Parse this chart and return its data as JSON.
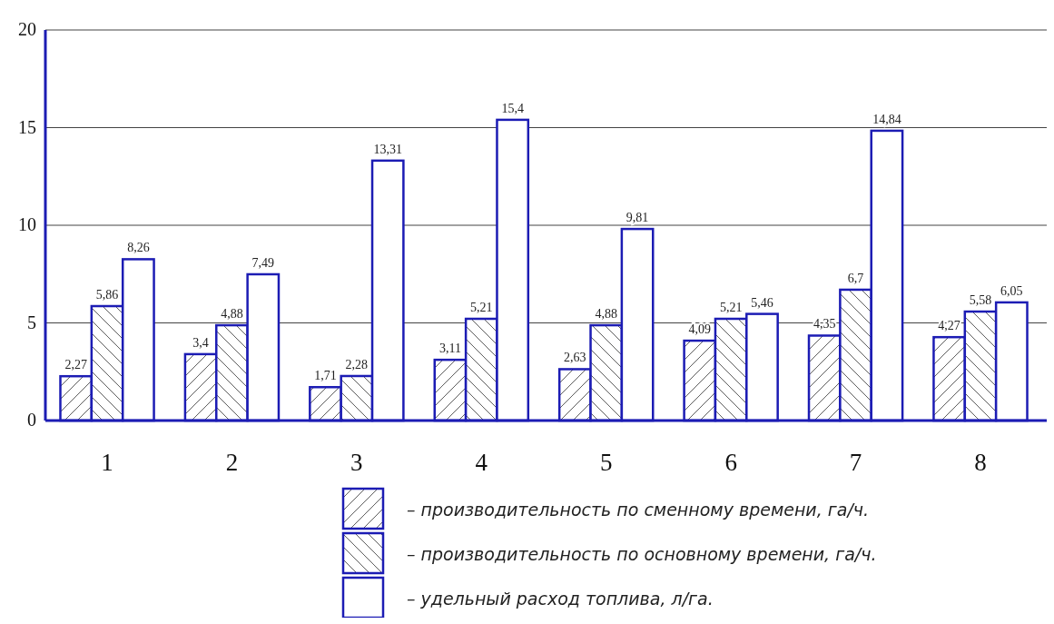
{
  "chart_data": {
    "type": "bar",
    "categories": [
      "1",
      "2",
      "3",
      "4",
      "5",
      "6",
      "7",
      "8"
    ],
    "series": [
      {
        "name": "– производительность по сменному времени, га/ч.",
        "color": "#1c1cb4",
        "values": [
          2.27,
          3.4,
          1.71,
          3.11,
          2.63,
          4.09,
          4.35,
          4.27
        ],
        "value_labels": [
          "2,27",
          "3,4",
          "1,71",
          "3,11",
          "2,63",
          "4,09",
          "4,35",
          "4,27"
        ]
      },
      {
        "name": "– производительность по основному времени, га/ч.",
        "color": "#1c1cb4",
        "values": [
          5.86,
          4.88,
          2.28,
          5.21,
          4.88,
          5.21,
          6.7,
          5.58
        ],
        "value_labels": [
          "5,86",
          "4,88",
          "2,28",
          "5,21",
          "4,88",
          "5,21",
          "6,7",
          "5,58"
        ]
      },
      {
        "name": "– удельный расход топлива, л/га.",
        "color": "#1c1cb4",
        "values": [
          8.26,
          7.49,
          13.31,
          15.4,
          9.81,
          5.46,
          14.84,
          6.05
        ],
        "value_labels": [
          "8,26",
          "7,49",
          "13,31",
          "15,4",
          "9,81",
          "5,46",
          "14,84",
          "6,05"
        ]
      }
    ],
    "ylim": [
      0,
      20
    ],
    "yticks": [
      0,
      5,
      10,
      15,
      20
    ],
    "grid": "y",
    "legend": "bottom"
  }
}
